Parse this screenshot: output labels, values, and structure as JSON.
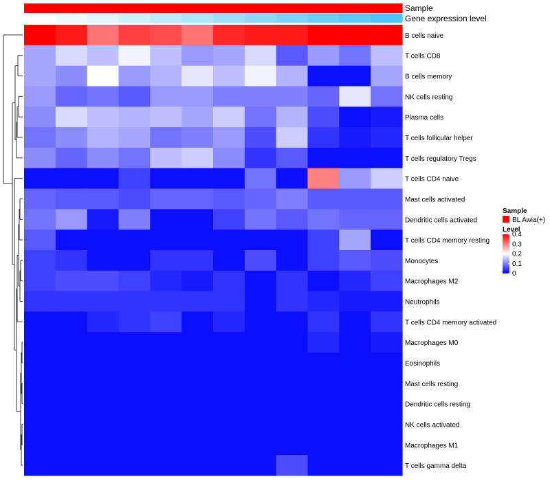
{
  "chart_data": {
    "type": "heatmap",
    "title": "",
    "annotation_labels": {
      "sample": "Sample",
      "gene_expression": "Gene expression level"
    },
    "rows": [
      "B cells naive",
      "T cells CD8",
      "B cells memory",
      "NK cells resting",
      "Plasma cells",
      "T cells follicular helper",
      "T cells regulatory  Tregs",
      "T cells CD4 naive",
      "Mast cells activated",
      "Dendritic cells activated",
      "T cells CD4 memory resting",
      "Monocytes",
      "Macrophages M2",
      "Neutrophils",
      "T cells CD4 memory activated",
      "Macrophages M0",
      "Eosinophils",
      "Mast cells resting",
      "Dendritic cells resting",
      "NK cells activated",
      "Macrophages M1",
      "T cells gamma delta"
    ],
    "n_columns": 12,
    "values": [
      [
        0.4,
        0.38,
        0.31,
        0.35,
        0.34,
        0.31,
        0.37,
        0.38,
        0.38,
        0.4,
        0.4,
        0.4
      ],
      [
        0.13,
        0.17,
        0.15,
        0.19,
        0.15,
        0.12,
        0.13,
        0.17,
        0.07,
        0.12,
        0.09,
        0.15
      ],
      [
        0.13,
        0.11,
        0.2,
        0.12,
        0.14,
        0.18,
        0.15,
        0.19,
        0.14,
        0.01,
        0.01,
        0.13
      ],
      [
        0.12,
        0.08,
        0.09,
        0.07,
        0.12,
        0.12,
        0.1,
        0.1,
        0.1,
        0.08,
        0.18,
        0.09
      ],
      [
        0.11,
        0.17,
        0.15,
        0.14,
        0.15,
        0.13,
        0.16,
        0.09,
        0.14,
        0.06,
        0.01,
        0.02
      ],
      [
        0.09,
        0.11,
        0.14,
        0.13,
        0.09,
        0.1,
        0.12,
        0.06,
        0.16,
        0.04,
        0.02,
        0.03
      ],
      [
        0.11,
        0.08,
        0.11,
        0.09,
        0.15,
        0.16,
        0.11,
        0.04,
        0.07,
        0.01,
        0.01,
        0.01
      ],
      [
        0.01,
        0.01,
        0.01,
        0.05,
        0.01,
        0.01,
        0.01,
        0.09,
        0.01,
        0.3,
        0.12,
        0.16
      ],
      [
        0.08,
        0.07,
        0.07,
        0.06,
        0.08,
        0.08,
        0.07,
        0.08,
        0.1,
        0.07,
        0.07,
        0.07
      ],
      [
        0.09,
        0.12,
        0.02,
        0.1,
        0.01,
        0.01,
        0.05,
        0.09,
        0.07,
        0.09,
        0.08,
        0.08
      ],
      [
        0.07,
        0.01,
        0.01,
        0.01,
        0.01,
        0.01,
        0.01,
        0.01,
        0.01,
        0.05,
        0.13,
        0.01
      ],
      [
        0.05,
        0.04,
        0.01,
        0.01,
        0.04,
        0.04,
        0.01,
        0.06,
        0.01,
        0.05,
        0.07,
        0.06
      ],
      [
        0.05,
        0.06,
        0.06,
        0.05,
        0.03,
        0.02,
        0.04,
        0.01,
        0.04,
        0.01,
        0.03,
        0.05
      ],
      [
        0.04,
        0.04,
        0.04,
        0.04,
        0.04,
        0.04,
        0.04,
        0.01,
        0.04,
        0.03,
        0.02,
        0.02
      ],
      [
        0.01,
        0.01,
        0.03,
        0.04,
        0.05,
        0.01,
        0.03,
        0.01,
        0.01,
        0.04,
        0.01,
        0.04
      ],
      [
        0.01,
        0.01,
        0.01,
        0.01,
        0.01,
        0.01,
        0.01,
        0.01,
        0.01,
        0.03,
        0.01,
        0.02
      ],
      [
        0.01,
        0.01,
        0.01,
        0.01,
        0.01,
        0.01,
        0.01,
        0.01,
        0.01,
        0.01,
        0.01,
        0.01
      ],
      [
        0.01,
        0.01,
        0.01,
        0.01,
        0.01,
        0.01,
        0.01,
        0.01,
        0.01,
        0.01,
        0.01,
        0.01
      ],
      [
        0.01,
        0.01,
        0.01,
        0.01,
        0.01,
        0.01,
        0.01,
        0.01,
        0.01,
        0.01,
        0.01,
        0.01
      ],
      [
        0.01,
        0.01,
        0.01,
        0.01,
        0.01,
        0.01,
        0.01,
        0.01,
        0.01,
        0.01,
        0.01,
        0.01
      ],
      [
        0.01,
        0.01,
        0.01,
        0.01,
        0.01,
        0.01,
        0.01,
        0.01,
        0.01,
        0.01,
        0.01,
        0.01
      ],
      [
        0.01,
        0.01,
        0.01,
        0.01,
        0.01,
        0.01,
        0.01,
        0.01,
        0.06,
        0.01,
        0.01,
        0.01
      ]
    ],
    "gene_expression_level": [
      0.0,
      0.09,
      0.18,
      0.27,
      0.36,
      0.45,
      0.55,
      0.64,
      0.73,
      0.82,
      0.91,
      1.0
    ],
    "color_scale": {
      "min": 0,
      "mid": 0.2,
      "max": 0.4,
      "low_color": "#0000ff",
      "mid_color": "#ffffff",
      "high_color": "#ff0000"
    },
    "legend": {
      "position": "right",
      "sample_title": "Sample",
      "sample_entry": "BL Awia(+)",
      "sample_color": "#ff0000",
      "level_title": "Level",
      "ticks": [
        "0.4",
        "0.3",
        "0.2",
        "0.1",
        "0"
      ],
      "tick_values": [
        0.4,
        0.3,
        0.2,
        0.1,
        0
      ]
    },
    "gene_expression_colors": {
      "low": "#ffffff",
      "high": "#4fc3f7"
    },
    "dendrogram": "row clustering tree on left"
  }
}
